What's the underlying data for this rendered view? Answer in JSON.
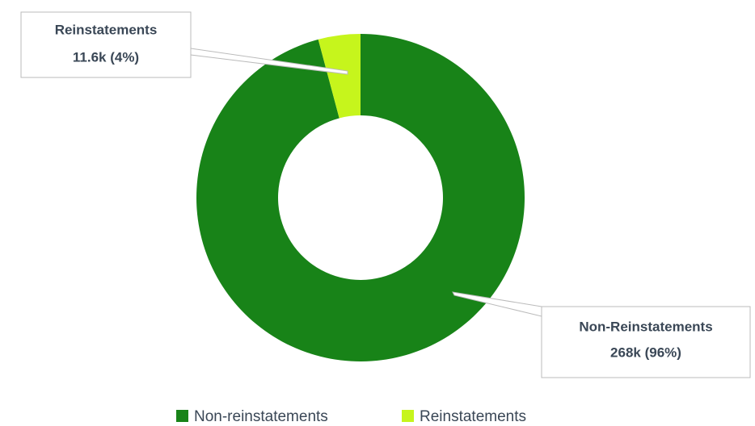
{
  "chart_data": {
    "type": "pie",
    "donut": true,
    "categories": [
      "Non-reinstatements",
      "Reinstatements"
    ],
    "labels": [
      "Non-Reinstatements",
      "Reinstatements"
    ],
    "values": [
      268000,
      11600
    ],
    "value_labels": [
      "268k (96%)",
      "11.6k (4%)"
    ],
    "colors": [
      "#188318",
      "#c6f51c"
    ],
    "legend": "bottom"
  }
}
